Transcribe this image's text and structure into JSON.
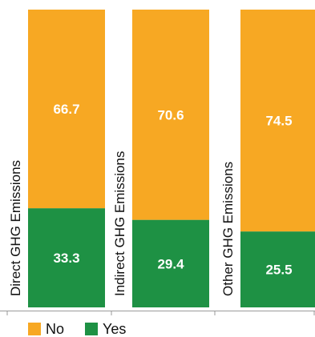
{
  "chart_data": {
    "type": "bar",
    "stacked": true,
    "orientation": "vertical",
    "categories": [
      "Direct GHG Emissions",
      "Indirect GHG Emissions",
      "Other GHG Emissions"
    ],
    "series": [
      {
        "name": "Yes",
        "values": [
          33.3,
          29.4,
          25.5
        ],
        "color": "#1e9144"
      },
      {
        "name": "No",
        "values": [
          66.7,
          70.6,
          74.5
        ],
        "color": "#f7a823"
      }
    ],
    "ylim": [
      0,
      100
    ],
    "grid": false,
    "legend_position": "bottom-left"
  }
}
